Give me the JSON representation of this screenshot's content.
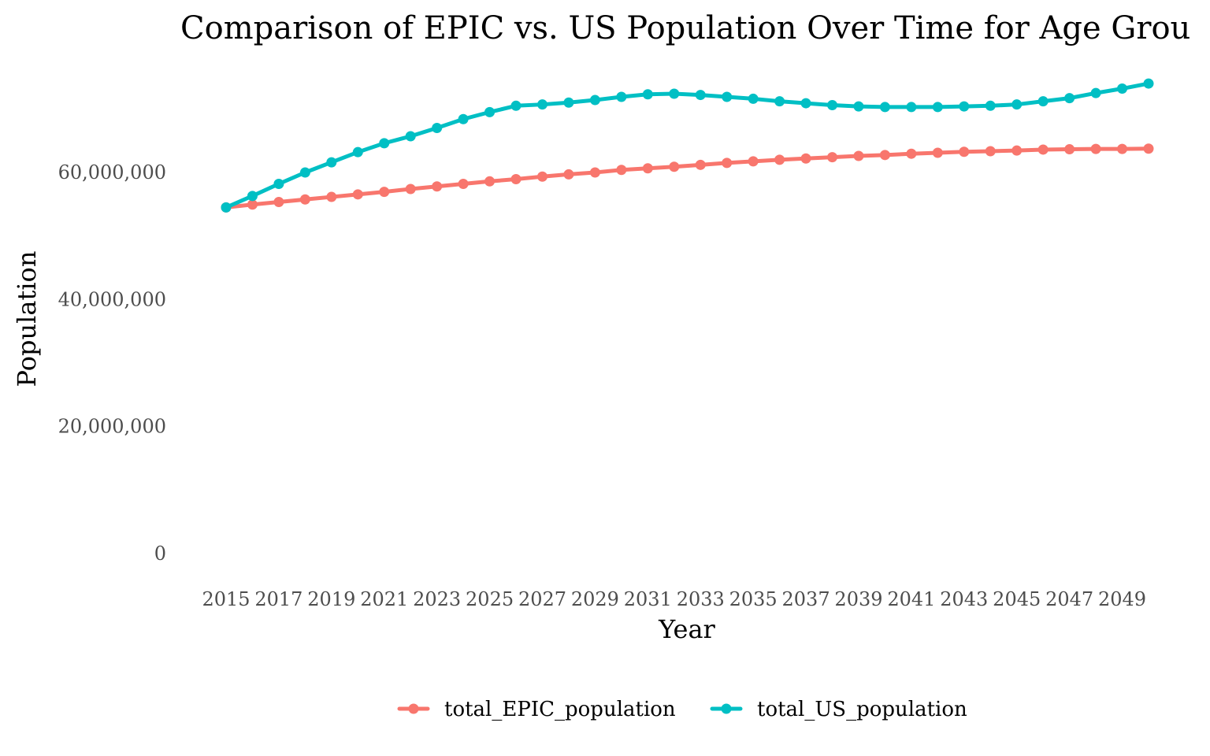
{
  "chart_data": {
    "type": "line",
    "title": "Comparison of EPIC vs. US Population Over Time for Age Grou",
    "xlabel": "Year",
    "ylabel": "Population",
    "x": [
      2015,
      2016,
      2017,
      2018,
      2019,
      2020,
      2021,
      2022,
      2023,
      2024,
      2025,
      2026,
      2027,
      2028,
      2029,
      2030,
      2031,
      2032,
      2033,
      2034,
      2035,
      2036,
      2037,
      2038,
      2039,
      2040,
      2041,
      2042,
      2043,
      2044,
      2045,
      2046,
      2047,
      2048,
      2049,
      2050
    ],
    "x_tick_labels": [
      "2015",
      "2017",
      "2019",
      "2021",
      "2023",
      "2025",
      "2027",
      "2029",
      "2031",
      "2033",
      "2035",
      "2037",
      "2039",
      "2041",
      "2043",
      "2045",
      "2047",
      "2049"
    ],
    "y_ticks": [
      0,
      20000000,
      40000000,
      60000000
    ],
    "y_tick_labels": [
      "0",
      "20,000,000",
      "40,000,000",
      "60,000,000"
    ],
    "ylim": [
      0,
      74000000
    ],
    "grid": false,
    "legend_position": "bottom",
    "series": [
      {
        "name": "total_EPIC_population",
        "color": "#F8766D",
        "values": [
          54500000,
          54950000,
          55350000,
          55750000,
          56150000,
          56550000,
          56950000,
          57400000,
          57800000,
          58200000,
          58600000,
          58950000,
          59350000,
          59700000,
          60000000,
          60400000,
          60650000,
          60900000,
          61200000,
          61500000,
          61750000,
          62000000,
          62200000,
          62400000,
          62600000,
          62750000,
          62950000,
          63100000,
          63250000,
          63350000,
          63450000,
          63600000,
          63650000,
          63700000,
          63700000,
          63750000
        ]
      },
      {
        "name": "total_US_population",
        "color": "#00BFC4",
        "values": [
          54500000,
          56300000,
          58200000,
          60000000,
          61600000,
          63200000,
          64600000,
          65700000,
          67000000,
          68400000,
          69500000,
          70500000,
          70700000,
          71000000,
          71400000,
          71900000,
          72300000,
          72400000,
          72200000,
          71900000,
          71600000,
          71200000,
          70900000,
          70600000,
          70400000,
          70300000,
          70300000,
          70300000,
          70400000,
          70500000,
          70700000,
          71200000,
          71700000,
          72500000,
          73200000,
          74000000
        ]
      }
    ]
  }
}
